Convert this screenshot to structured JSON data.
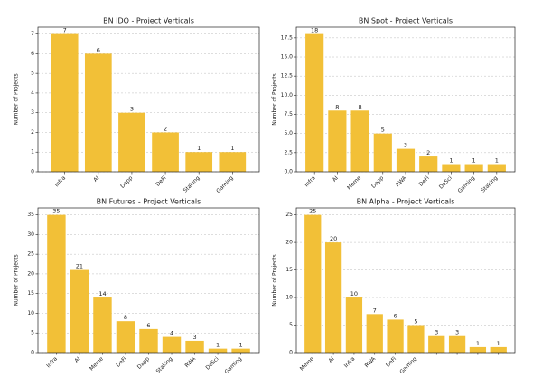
{
  "chart_data": [
    {
      "type": "bar",
      "title": "BN IDO - Project Verticals",
      "ylabel": "Number of Projects",
      "categories": [
        "Infra",
        "AI",
        "Dapp",
        "DeFi",
        "Staking",
        "Gaming"
      ],
      "values": [
        7,
        6,
        3,
        2,
        1,
        1
      ],
      "color": "#f2c037",
      "ylim": [
        0,
        7.35
      ],
      "yticks": [
        0,
        1,
        2,
        3,
        4,
        5,
        6,
        7
      ],
      "grid": true
    },
    {
      "type": "bar",
      "title": "BN Spot - Project Verticals",
      "ylabel": "Number of Projects",
      "categories": [
        "Infra",
        "AI",
        "Meme",
        "Dapp",
        "RWA",
        "DeFi",
        "DeSci",
        "Gaming",
        "Staking"
      ],
      "values": [
        18,
        8,
        8,
        5,
        3,
        2,
        1,
        1,
        1
      ],
      "color": "#f2c037",
      "ylim": [
        0,
        18.9
      ],
      "yticks": [
        {
          "value": 0,
          "label": "0.0"
        },
        2.5,
        {
          "value": 5,
          "label": "5.0"
        },
        7.5,
        {
          "value": 10,
          "label": "10.0"
        },
        12.5,
        {
          "value": 15,
          "label": "15.0"
        },
        17.5
      ],
      "grid": true
    },
    {
      "type": "bar",
      "title": "BN Futures - Project Verticals",
      "ylabel": "Number of Projects",
      "categories": [
        "Infra",
        "AI",
        "Meme",
        "DeFi",
        "Dapp",
        "Staking",
        "RWA",
        "DeSci",
        "Gaming"
      ],
      "values": [
        35,
        21,
        14,
        8,
        6,
        4,
        3,
        1,
        1
      ],
      "color": "#f2c037",
      "ylim": [
        0,
        36.75
      ],
      "yticks": [
        0,
        5,
        10,
        15,
        20,
        25,
        30,
        35
      ],
      "grid": true
    },
    {
      "type": "bar",
      "title": "BN Alpha - Project Verticals",
      "ylabel": "Number of Projects",
      "categories": [
        "Meme",
        "AI",
        "Infra",
        "RWA",
        "DeFi",
        "Gaming",
        null,
        null,
        null,
        null
      ],
      "values": [
        25,
        20,
        10,
        7,
        6,
        5,
        3,
        3,
        1,
        1
      ],
      "color": "#f2c037",
      "ylim": [
        0,
        26.25
      ],
      "yticks": [
        0,
        5,
        10,
        15,
        20,
        25
      ],
      "grid": true
    }
  ]
}
